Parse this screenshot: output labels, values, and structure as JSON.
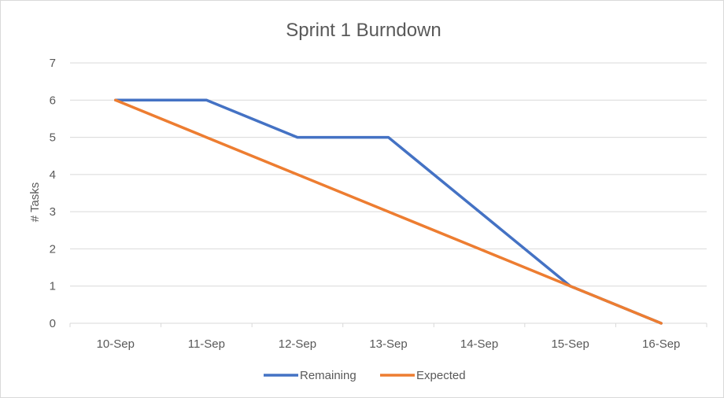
{
  "chart_data": {
    "type": "line",
    "title": "Sprint 1 Burndown",
    "xlabel": "",
    "ylabel": "# Tasks",
    "categories": [
      "10-Sep",
      "11-Sep",
      "12-Sep",
      "13-Sep",
      "14-Sep",
      "15-Sep",
      "16-Sep"
    ],
    "ylim": [
      0,
      7
    ],
    "yticks": [
      "0",
      "1",
      "2",
      "3",
      "4",
      "5",
      "6",
      "7"
    ],
    "grid": true,
    "legend_position": "bottom",
    "series": [
      {
        "name": "Remaining",
        "values": [
          6,
          6,
          5,
          5,
          null,
          1,
          0
        ],
        "color": "#4472c4"
      },
      {
        "name": "Expected",
        "values": [
          6,
          5,
          4,
          3,
          2,
          1,
          0
        ],
        "color": "#ed7d31"
      }
    ]
  }
}
